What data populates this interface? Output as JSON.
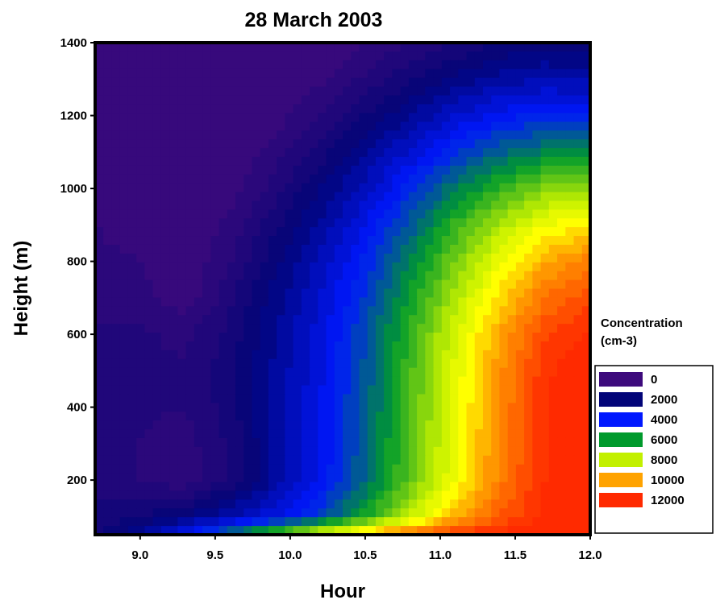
{
  "chart_data": {
    "type": "heatmap",
    "subtype": "filled-contour",
    "title": "28 March 2003",
    "xlabel": "Hour",
    "ylabel": "Height (m)",
    "xlim": [
      8.7,
      12.0
    ],
    "ylim": [
      50,
      1400
    ],
    "xticks": [
      9.0,
      9.5,
      10.0,
      10.5,
      11.0,
      11.5,
      12.0
    ],
    "xtick_labels": [
      "9.0",
      "9.5",
      "10.0",
      "10.5",
      "11.0",
      "11.5",
      "12.0"
    ],
    "yticks": [
      200,
      400,
      600,
      800,
      1000,
      1200,
      1400
    ],
    "ytick_labels": [
      "200",
      "400",
      "600",
      "800",
      "1000",
      "1200",
      "1400"
    ],
    "legend": {
      "title_line1": "Concentration",
      "title_line2": "(cm-3)",
      "placement": "right",
      "entries": [
        {
          "label": "0",
          "color": "#3d0a7c"
        },
        {
          "label": "2000",
          "color": "#020478"
        },
        {
          "label": "4000",
          "color": "#0018ff"
        },
        {
          "label": "6000",
          "color": "#009a2c"
        },
        {
          "label": "8000",
          "color": "#c2f000"
        },
        {
          "label": "10000",
          "color": "#ffa300"
        },
        {
          "label": "12000",
          "color": "#ff2a00"
        }
      ]
    },
    "colormap": [
      {
        "value": 0,
        "color": "#3d0a7c"
      },
      {
        "value": 2000,
        "color": "#020478"
      },
      {
        "value": 4000,
        "color": "#0018ff"
      },
      {
        "value": 6000,
        "color": "#009a2c"
      },
      {
        "value": 8000,
        "color": "#c2f000"
      },
      {
        "value": 9000,
        "color": "#ffff00"
      },
      {
        "value": 10000,
        "color": "#ffa300"
      },
      {
        "value": 12000,
        "color": "#ff2a00"
      }
    ],
    "contour_interval": 400,
    "x": [
      8.7,
      9.0,
      9.3,
      9.6,
      9.9,
      10.2,
      10.5,
      10.8,
      11.1,
      11.4,
      11.7,
      12.0
    ],
    "y": [
      50,
      100,
      200,
      300,
      400,
      500,
      600,
      700,
      800,
      900,
      1000,
      1100,
      1200,
      1300,
      1400
    ],
    "z": [
      [
        1500,
        2500,
        3800,
        5500,
        7000,
        8500,
        9800,
        11000,
        11800,
        12200,
        12500,
        12500
      ],
      [
        1300,
        1600,
        2000,
        2800,
        3500,
        4600,
        6200,
        8000,
        9800,
        11200,
        12200,
        12500
      ],
      [
        1100,
        800,
        450,
        1200,
        2500,
        3700,
        5200,
        7000,
        8800,
        10600,
        12000,
        12500
      ],
      [
        1000,
        800,
        600,
        1300,
        2500,
        3600,
        5100,
        6900,
        8700,
        10500,
        12000,
        12500
      ],
      [
        950,
        850,
        800,
        1400,
        2500,
        3600,
        5000,
        6800,
        8600,
        10400,
        12000,
        12500
      ],
      [
        900,
        900,
        850,
        1450,
        2500,
        3500,
        4900,
        6700,
        8500,
        10300,
        11900,
        12400
      ],
      [
        850,
        850,
        700,
        1350,
        2400,
        3400,
        4800,
        6500,
        8300,
        10000,
        11500,
        12100
      ],
      [
        600,
        600,
        100,
        1100,
        2200,
        3200,
        4500,
        6100,
        7800,
        9400,
        10800,
        11500
      ],
      [
        500,
        400,
        0,
        800,
        1900,
        2900,
        4100,
        5600,
        7200,
        8700,
        9900,
        10600
      ],
      [
        400,
        200,
        0,
        500,
        1500,
        2500,
        3600,
        5000,
        6500,
        7800,
        8800,
        9200
      ],
      [
        350,
        100,
        0,
        200,
        1000,
        2000,
        3000,
        4200,
        5500,
        6500,
        7300,
        7500
      ],
      [
        300,
        0,
        0,
        0,
        600,
        1400,
        2300,
        3300,
        4300,
        5100,
        5600,
        5700
      ],
      [
        200,
        0,
        0,
        0,
        200,
        800,
        1600,
        2400,
        3200,
        3800,
        4100,
        4000
      ],
      [
        100,
        0,
        0,
        0,
        0,
        300,
        900,
        1500,
        2100,
        2600,
        2800,
        2700
      ],
      [
        0,
        0,
        0,
        0,
        0,
        0,
        400,
        800,
        1200,
        1600,
        1800,
        1700
      ]
    ]
  }
}
